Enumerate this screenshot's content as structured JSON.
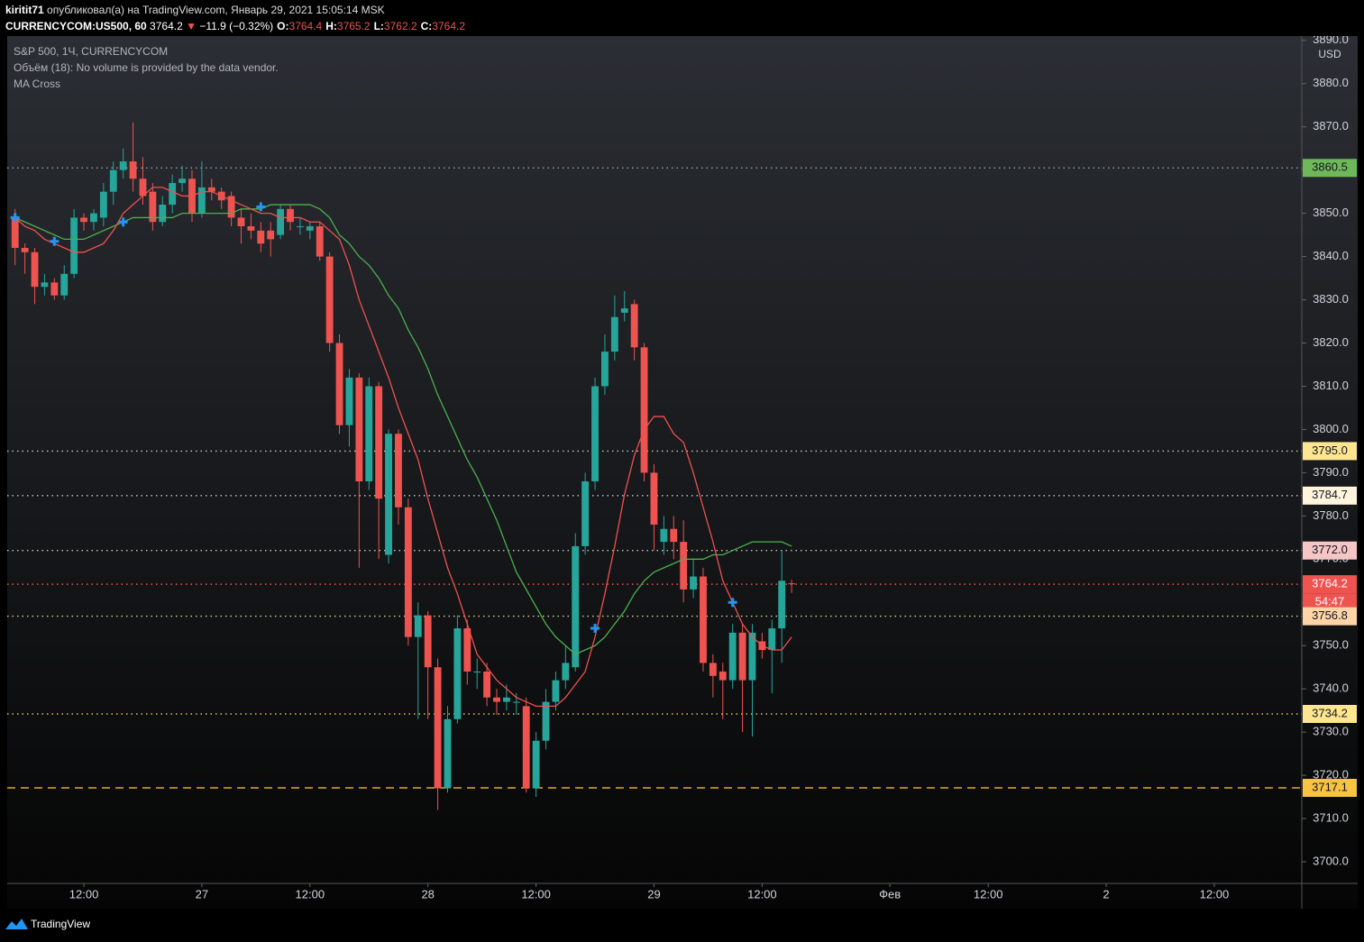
{
  "header": {
    "author": "kiritit71",
    "published": "опубликовал(а) на TradingView.com, Январь 29, 2021 15:05:14 MSK",
    "symbol": "CURRENCYCOM:US500, 60",
    "last": 3764.2,
    "arrow": "▼",
    "change": "−11.9 (−0.32%)",
    "ohlc": [
      {
        "label": "O:",
        "value": 3764.4
      },
      {
        "label": "H:",
        "value": 3765.2
      },
      {
        "label": "L:",
        "value": 3762.2
      },
      {
        "label": "C:",
        "value": 3764.2
      }
    ]
  },
  "chart_data": {
    "type": "candlestick",
    "legend": [
      "S&P 500, 1Ч, CURRENCYCOM",
      "Объём (18): No volume is provided by the data vendor.",
      "MA Cross"
    ],
    "currency": "USD",
    "up_color": "#26a69a",
    "down_color": "#ef5350",
    "open": [
      3849,
      3842,
      3841,
      3833,
      3834,
      3831,
      3836,
      3849,
      3848,
      3849,
      3855,
      3860,
      3862,
      3858,
      3855,
      3848,
      3852,
      3857,
      3858,
      3850,
      3856,
      3855,
      3854,
      3849,
      3847,
      3846,
      3846,
      3845,
      3851,
      3847,
      3846,
      3847,
      3840,
      3820,
      3801,
      3812,
      3788,
      3810,
      3771,
      3799,
      3782,
      3752,
      3757,
      3745,
      3717,
      3733,
      3754,
      3744,
      3744,
      3738,
      3737,
      3737,
      3736,
      3717,
      3728,
      3737,
      3742,
      3745,
      3773,
      3788,
      3810,
      3818,
      3827,
      3829,
      3819,
      3790,
      3774,
      3777,
      3774,
      3763,
      3766,
      3746,
      3744,
      3742,
      3753,
      3742,
      3751,
      3749,
      3754,
      3764.4
    ],
    "high": [
      3851,
      3843,
      3842,
      3836,
      3835,
      3838,
      3851,
      3850,
      3851,
      3857,
      3862,
      3865,
      3871,
      3863,
      3857,
      3854,
      3859,
      3861,
      3860,
      3862,
      3858,
      3856,
      3855,
      3851,
      3850,
      3848,
      3848,
      3852,
      3852,
      3849,
      3848,
      3848,
      3841,
      3822,
      3814,
      3813,
      3812,
      3811,
      3800,
      3800,
      3784,
      3760,
      3758,
      3747,
      3736,
      3757,
      3756,
      3747,
      3746,
      3740,
      3741,
      3739,
      3738,
      3730,
      3740,
      3744,
      3750,
      3776,
      3790,
      3812,
      3822,
      3831,
      3832,
      3830,
      3820,
      3792,
      3780,
      3780,
      3779,
      3770,
      3768,
      3748,
      3746,
      3755,
      3755,
      3755,
      3753,
      3756,
      3772,
      3765.2
    ],
    "low": [
      3838,
      3836,
      3829,
      3831,
      3830,
      3830,
      3835,
      3846,
      3846,
      3847,
      3852,
      3858,
      3855,
      3852,
      3846,
      3847,
      3850,
      3855,
      3848,
      3849,
      3853,
      3851,
      3847,
      3843,
      3844,
      3841,
      3840,
      3844,
      3846,
      3845,
      3844,
      3839,
      3818,
      3799,
      3796,
      3768,
      3786,
      3770,
      3769,
      3778,
      3750,
      3733,
      3733,
      3712,
      3716,
      3732,
      3741,
      3740,
      3736,
      3734,
      3735,
      3734,
      3716,
      3715,
      3726,
      3735,
      3740,
      3744,
      3771,
      3786,
      3808,
      3816,
      3825,
      3816,
      3788,
      3772,
      3771,
      3770,
      3760,
      3761,
      3744,
      3738,
      3733,
      3740,
      3730,
      3729,
      3747,
      3739,
      3746,
      3762.2
    ],
    "close": [
      3842,
      3841,
      3833,
      3834,
      3831,
      3836,
      3849,
      3848,
      3850,
      3855,
      3860,
      3862,
      3858,
      3854,
      3848,
      3852,
      3857,
      3858,
      3850,
      3856,
      3855,
      3853,
      3849,
      3847,
      3846,
      3843,
      3844,
      3851,
      3848,
      3847,
      3847,
      3840,
      3820,
      3801,
      3812,
      3788,
      3810,
      3784,
      3799,
      3782,
      3752,
      3757,
      3745,
      3717,
      3733,
      3754,
      3744,
      3744,
      3738,
      3737,
      3738,
      3737,
      3717,
      3728,
      3737,
      3742,
      3746,
      3773,
      3788,
      3810,
      3818,
      3826,
      3828,
      3819,
      3790,
      3778,
      3777,
      3774,
      3763,
      3766,
      3746,
      3743,
      3742,
      3753,
      3742,
      3753,
      3749,
      3754,
      3765,
      3764.2
    ],
    "series": [
      {
        "color": "#4caf50",
        "values": [
          3849,
          3848,
          3847,
          3846,
          3845,
          3844,
          3844,
          3844,
          3845,
          3846,
          3847,
          3848,
          3849,
          3849,
          3849,
          3849,
          3849,
          3850,
          3850,
          3850,
          3850,
          3850,
          3850,
          3851,
          3851,
          3851,
          3852,
          3852,
          3852,
          3852,
          3852,
          3851,
          3849,
          3845,
          3843,
          3840,
          3838,
          3835,
          3831,
          3828,
          3823,
          3819,
          3814,
          3808,
          3803,
          3798,
          3793,
          3789,
          3784,
          3779,
          3773,
          3767,
          3763,
          3759,
          3755,
          3752,
          3750,
          3748,
          3749,
          3750,
          3752,
          3755,
          3758,
          3762,
          3765,
          3767,
          3768,
          3769,
          3770,
          3770,
          3770,
          3771,
          3771,
          3772,
          3773,
          3774,
          3774,
          3774,
          3774,
          3773
        ]
      },
      {
        "color": "#f0504f",
        "values": [
          3849,
          3847,
          3846,
          3844,
          3843,
          3842,
          3841,
          3841,
          3842,
          3843,
          3846,
          3850,
          3852,
          3854,
          3856,
          3856,
          3855,
          3854,
          3854,
          3855,
          3855,
          3854,
          3853,
          3852,
          3851,
          3850,
          3850,
          3849,
          3849,
          3849,
          3848,
          3848,
          3846,
          3844,
          3838,
          3830,
          3824,
          3818,
          3812,
          3805,
          3799,
          3793,
          3784,
          3776,
          3768,
          3762,
          3755,
          3748,
          3745,
          3742,
          3740,
          3738,
          3737,
          3736,
          3736,
          3736,
          3738,
          3741,
          3744,
          3752,
          3762,
          3773,
          3785,
          3794,
          3800,
          3803,
          3803,
          3799,
          3797,
          3790,
          3782,
          3774,
          3765,
          3760,
          3755,
          3752,
          3750,
          3749,
          3749,
          3752
        ]
      }
    ],
    "crosses": [
      {
        "index": 0,
        "value": 3849
      },
      {
        "index": 4,
        "value": 3843.5
      },
      {
        "index": 11,
        "value": 3848
      },
      {
        "index": 25,
        "value": 3851.5
      },
      {
        "index": 59,
        "value": 3754
      },
      {
        "index": 73,
        "value": 3760
      }
    ],
    "levels": [
      {
        "value": 3860.5,
        "label": "3860.5",
        "bg": "#6fb85a",
        "line": "#9aa0a6"
      },
      {
        "value": 3795,
        "label": "3795.0",
        "bg": "#fde68f",
        "line": "#c9c9b0"
      },
      {
        "value": 3784.7,
        "label": "3784.7",
        "bg": "#fff5dc",
        "line": "#c8c8c8"
      },
      {
        "value": 3772,
        "label": "3772.0",
        "bg": "#f6c6c6",
        "line": "#c8c8c8"
      },
      {
        "value": 3764.2,
        "label": "3764.2",
        "bg": "#ef5350",
        "line": "#ef5350"
      },
      {
        "value": 3756.8,
        "label": "3756.8",
        "bg": "#ffd5a8",
        "line": "#d8d0a0"
      },
      {
        "value": 3734.2,
        "label": "3734.2",
        "bg": "#fde68f",
        "line": "#d9c95a"
      },
      {
        "value": 3717.1,
        "label": "3717.1",
        "bg": "#f6c343",
        "line": "#e0a82e",
        "dashed": true
      }
    ],
    "countdown": "54:47",
    "xlim": [
      -0.8,
      130.9
    ],
    "xticks": [
      {
        "value": 7,
        "label": "12:00"
      },
      {
        "value": 19,
        "label": "27"
      },
      {
        "value": 30,
        "label": "12:00"
      },
      {
        "value": 42,
        "label": "28"
      },
      {
        "value": 53,
        "label": "12:00"
      },
      {
        "value": 65,
        "label": "29"
      },
      {
        "value": 76,
        "label": "12:00"
      },
      {
        "value": 89,
        "label": "Фев"
      },
      {
        "value": 99,
        "label": "12:00"
      },
      {
        "value": 111,
        "label": "2"
      },
      {
        "value": 122,
        "label": "12:00"
      }
    ],
    "ylim": [
      3695,
      3891
    ],
    "yticks": [
      {
        "value": 3700,
        "label": "3700.0"
      },
      {
        "value": 3710,
        "label": "3710.0"
      },
      {
        "value": 3720,
        "label": "3720.0"
      },
      {
        "value": 3730,
        "label": "3730.0"
      },
      {
        "value": 3740,
        "label": "3740.0"
      },
      {
        "value": 3750,
        "label": "3750.0"
      },
      {
        "value": 3760,
        "label": "3760.0"
      },
      {
        "value": 3770,
        "label": "3770.0"
      },
      {
        "value": 3780,
        "label": "3780.0"
      },
      {
        "value": 3790,
        "label": "3790.0"
      },
      {
        "value": 3800,
        "label": "3800.0"
      },
      {
        "value": 3810,
        "label": "3810.0"
      },
      {
        "value": 3820,
        "label": "3820.0"
      },
      {
        "value": 3830,
        "label": "3830.0"
      },
      {
        "value": 3840,
        "label": "3840.0"
      },
      {
        "value": 3850,
        "label": "3850.0"
      },
      {
        "value": 3860,
        "label": "3860.0"
      },
      {
        "value": 3870,
        "label": "3870.0"
      },
      {
        "value": 3880,
        "label": "3880.0"
      },
      {
        "value": 3890,
        "label": "3890.0"
      }
    ]
  },
  "footer": {
    "brand": "TradingView"
  }
}
